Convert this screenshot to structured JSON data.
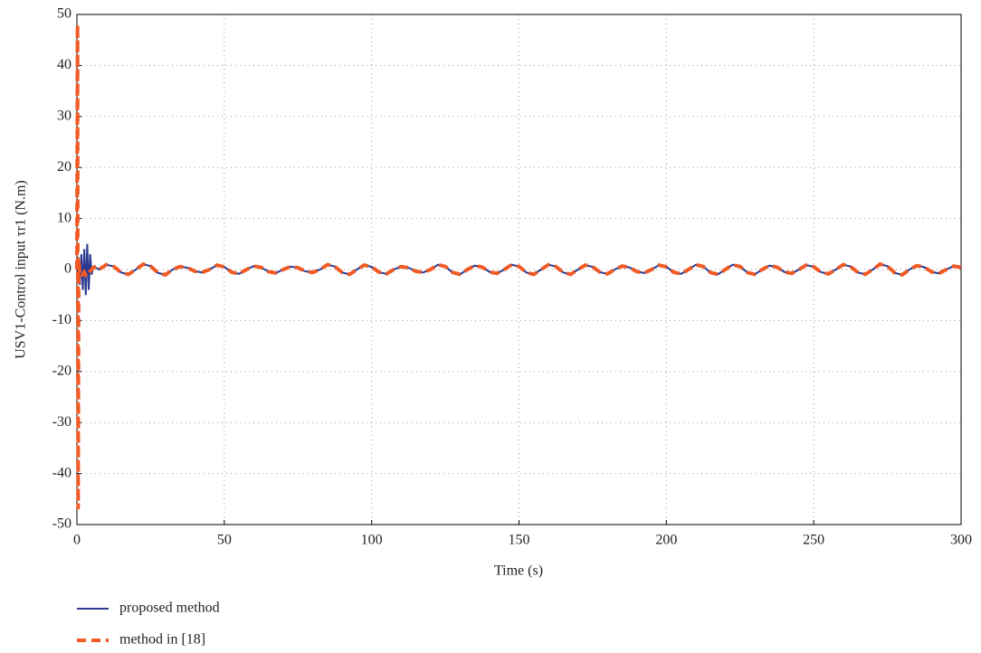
{
  "chart_data": {
    "type": "line",
    "xlabel": "Time (s)",
    "ylabel": "USV1-Control input τr1 (N.m)",
    "xlim": [
      0,
      300
    ],
    "xticks": [
      0,
      50,
      100,
      150,
      200,
      250,
      300
    ],
    "ylim": [
      -50,
      50
    ],
    "yticks": [
      -50,
      -40,
      -30,
      -20,
      -10,
      0,
      10,
      20,
      30,
      40,
      50
    ],
    "grid": true,
    "legend": "below",
    "x": [
      0,
      0.2,
      0.4,
      0.6,
      1,
      1.5,
      2,
      2.5,
      3,
      3.5,
      4,
      4.5,
      5,
      5.5,
      6,
      6.5,
      7,
      7.5,
      10,
      12.5,
      15,
      17.5,
      20,
      22.5,
      25,
      27.5,
      30,
      32.5,
      35,
      37.5,
      40,
      42.5,
      45,
      47.5,
      50,
      52.5,
      55,
      57.5,
      60,
      62.5,
      65,
      67.5,
      70,
      72.5,
      75,
      77.5,
      80,
      82.5,
      85,
      87.5,
      90,
      92.5,
      95,
      97.5,
      100,
      102.5,
      105,
      107.5,
      110,
      112.5,
      115,
      117.5,
      120,
      122.5,
      125,
      127.5,
      130,
      132.5,
      135,
      137.5,
      140,
      142.5,
      145,
      147.5,
      150,
      152.5,
      155,
      157.5,
      160,
      162.5,
      165,
      167.5,
      170,
      172.5,
      175,
      177.5,
      180,
      182.5,
      185,
      187.5,
      190,
      192.5,
      195,
      197.5,
      200,
      202.5,
      205,
      207.5,
      210,
      212.5,
      215,
      217.5,
      220,
      222.5,
      225,
      227.5,
      230,
      232.5,
      235,
      237.5,
      240,
      242.5,
      245,
      247.5,
      250,
      252.5,
      255,
      257.5,
      260,
      262.5,
      265,
      267.5,
      270,
      272.5,
      275,
      277.5,
      280,
      282.5,
      285,
      287.5,
      290,
      292.5,
      295,
      297.5,
      300
    ],
    "series": [
      {
        "name": "proposed method",
        "color": "#2b3990",
        "dash": false,
        "values": [
          0,
          2.5,
          -2,
          2,
          -3,
          3,
          -4,
          4,
          -5,
          5,
          -4,
          3,
          -1,
          0.5,
          0.4,
          0.3,
          0.2,
          0,
          0.95,
          0.59,
          -0.59,
          -0.95,
          0,
          1.05,
          0.65,
          -0.65,
          -1.05,
          0,
          0.57,
          0.35,
          -0.35,
          -0.57,
          0,
          0.86,
          0.53,
          -0.53,
          -0.86,
          0,
          0.67,
          0.41,
          -0.41,
          -0.67,
          0,
          0.57,
          0.35,
          -0.35,
          -0.57,
          0,
          0.95,
          0.59,
          -0.59,
          -0.95,
          0,
          0.86,
          0.53,
          -0.53,
          -0.86,
          0,
          0.57,
          0.35,
          -0.35,
          -0.57,
          0,
          0.95,
          0.59,
          -0.59,
          -0.95,
          0,
          0.76,
          0.47,
          -0.47,
          -0.76,
          0,
          0.95,
          0.59,
          -0.59,
          -0.95,
          0,
          0.95,
          0.59,
          -0.59,
          -0.95,
          0,
          0.86,
          0.53,
          -0.53,
          -0.86,
          0,
          0.67,
          0.41,
          -0.41,
          -0.67,
          0,
          0.86,
          0.53,
          -0.53,
          -0.86,
          0,
          0.95,
          0.59,
          -0.59,
          -0.95,
          0,
          0.95,
          0.59,
          -0.59,
          -0.95,
          0,
          0.76,
          0.47,
          -0.47,
          -0.76,
          0,
          0.86,
          0.53,
          -0.53,
          -0.86,
          0,
          0.95,
          0.59,
          -0.59,
          -0.95,
          0,
          1.05,
          0.65,
          -0.65,
          -1.05,
          0,
          0.76,
          0.47,
          -0.47,
          -0.76,
          0,
          0.67,
          0.41
        ]
      },
      {
        "name": "method in [18]",
        "color": "#f15a24",
        "dash": true,
        "values": [
          0,
          48,
          -47,
          2,
          -1,
          -1.5,
          -1,
          -0.5,
          -1,
          -0.5,
          -0.8,
          -0.3,
          0,
          0.3,
          0.5,
          0.6,
          0.4,
          0,
          0.95,
          0.59,
          -0.59,
          -0.95,
          0,
          1.05,
          0.65,
          -0.65,
          -1.05,
          0,
          0.57,
          0.35,
          -0.35,
          -0.57,
          0,
          0.86,
          0.53,
          -0.53,
          -0.86,
          0,
          0.67,
          0.41,
          -0.41,
          -0.67,
          0,
          0.57,
          0.35,
          -0.35,
          -0.57,
          0,
          0.95,
          0.59,
          -0.59,
          -0.95,
          0,
          0.86,
          0.53,
          -0.53,
          -0.86,
          0,
          0.57,
          0.35,
          -0.35,
          -0.57,
          0,
          0.95,
          0.59,
          -0.59,
          -0.95,
          0,
          0.76,
          0.47,
          -0.47,
          -0.76,
          0,
          0.95,
          0.59,
          -0.59,
          -0.95,
          0,
          0.95,
          0.59,
          -0.59,
          -0.95,
          0,
          0.86,
          0.53,
          -0.53,
          -0.86,
          0,
          0.67,
          0.41,
          -0.41,
          -0.67,
          0,
          0.86,
          0.53,
          -0.53,
          -0.86,
          0,
          0.95,
          0.59,
          -0.59,
          -0.95,
          0,
          0.95,
          0.59,
          -0.59,
          -0.95,
          0,
          0.76,
          0.47,
          -0.47,
          -0.76,
          0,
          0.86,
          0.53,
          -0.53,
          -0.86,
          0,
          0.95,
          0.59,
          -0.59,
          -0.95,
          0,
          1.05,
          0.65,
          -0.65,
          -1.05,
          0,
          0.76,
          0.47,
          -0.47,
          -0.76,
          0,
          0.67,
          0.41
        ]
      }
    ]
  }
}
